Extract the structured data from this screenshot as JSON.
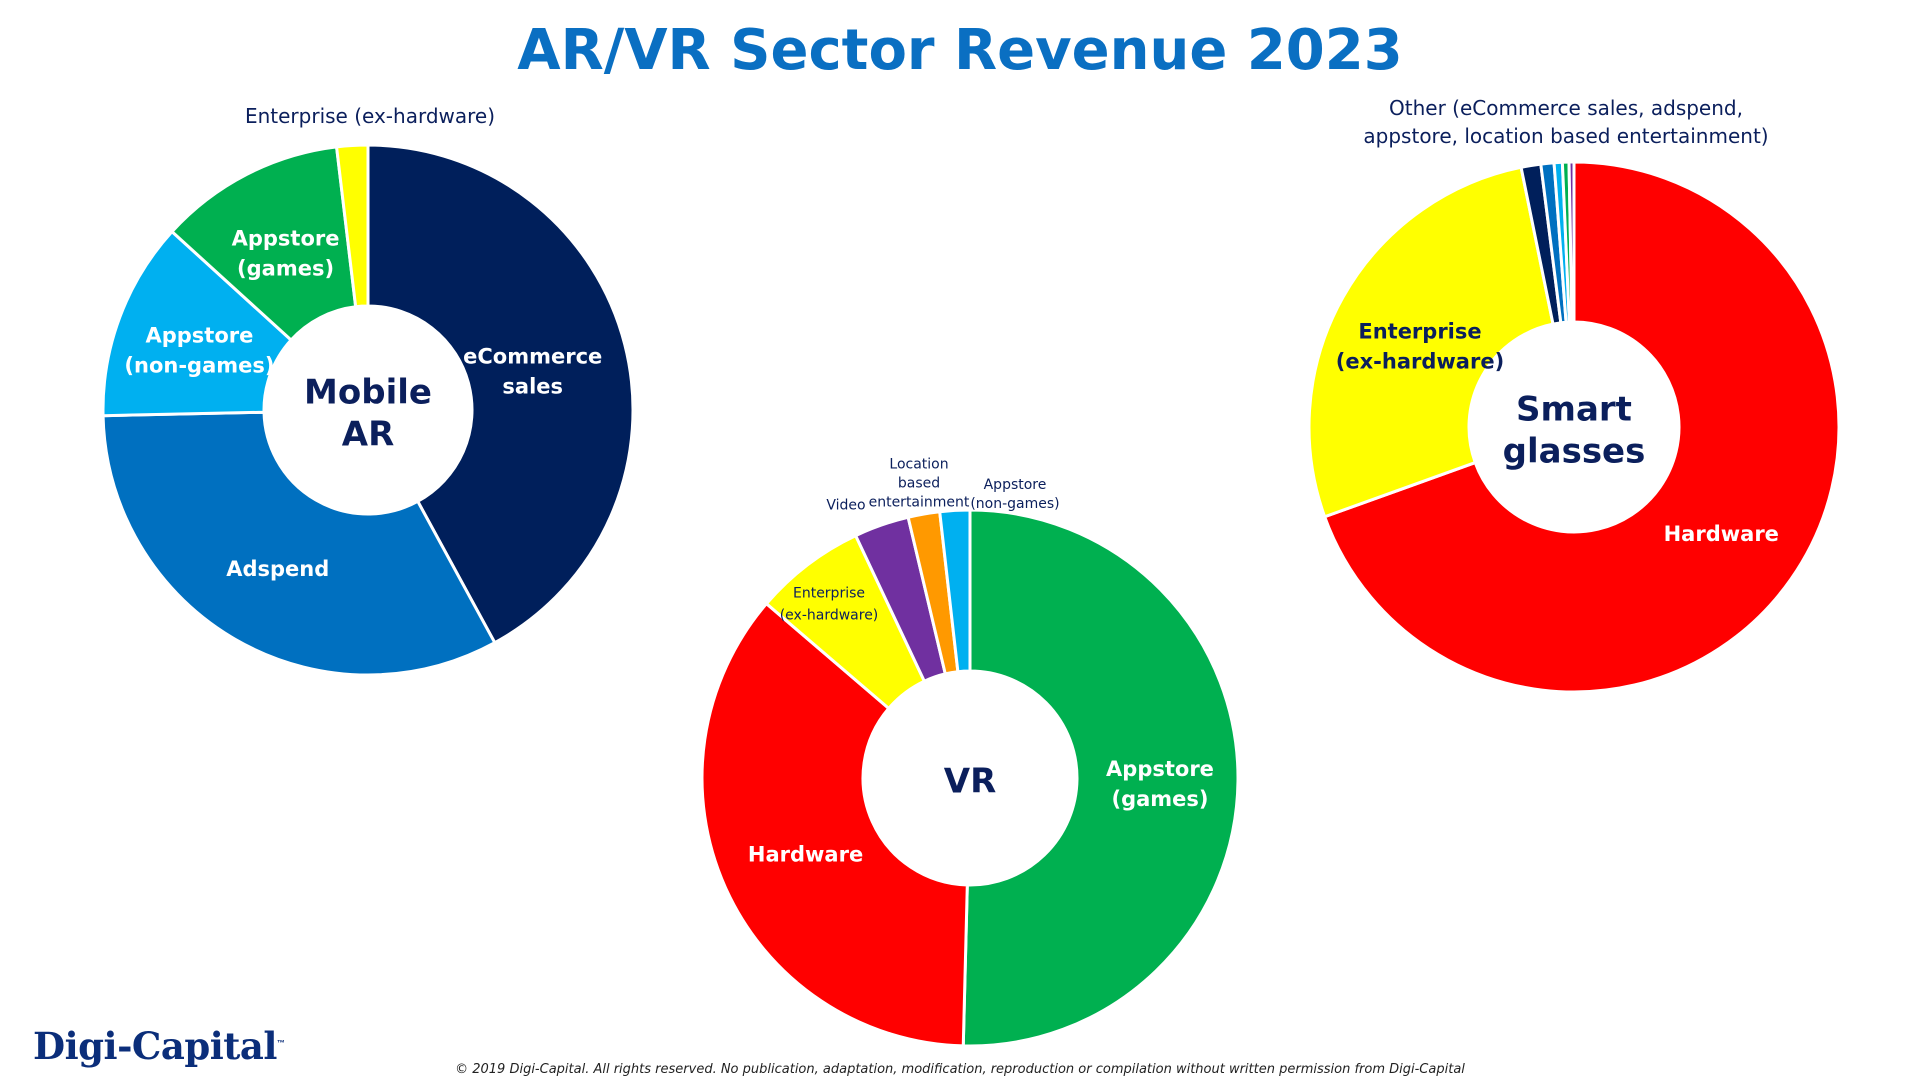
{
  "title": "AR/VR Sector Revenue 2023",
  "logo": {
    "text": "Digi-Capital",
    "tm": "™"
  },
  "copyright": "© 2019 Digi-Capital. All rights reserved. No publication, adaptation, modification, reproduction or compilation without written permission from Digi-Capital",
  "chart_data": [
    {
      "type": "pie",
      "variant": "donut",
      "title": "Mobile AR",
      "center_label": [
        "Mobile",
        "AR"
      ],
      "unit": "share of 2023 revenue (%)",
      "slices": [
        {
          "name": "eCommerce sales",
          "lines": [
            "eCommerce",
            "sales"
          ],
          "value": 40,
          "color": "#001f5b",
          "label_style": "white"
        },
        {
          "name": "Adspend",
          "lines": [
            "Adspend"
          ],
          "value": 31,
          "color": "#0070c0",
          "label_style": "white"
        },
        {
          "name": "Appstore (non-games)",
          "lines": [
            "Appstore",
            "(non-games)"
          ],
          "value": 11.5,
          "color": "#00b0f0",
          "label_style": "white"
        },
        {
          "name": "Appstore (games)",
          "lines": [
            "Appstore",
            "(games)"
          ],
          "value": 10.8,
          "color": "#00b050",
          "label_style": "white"
        },
        {
          "name": "Enterprise (ex-hardware)",
          "lines": [
            "Enterprise (ex-hardware)"
          ],
          "value": 1.8,
          "color": "#ffff00",
          "label_style": "outside"
        }
      ]
    },
    {
      "type": "pie",
      "variant": "donut",
      "title": "VR",
      "center_label": [
        "VR"
      ],
      "unit": "share of 2023 revenue (%)",
      "slices": [
        {
          "name": "Appstore (games)",
          "lines": [
            "Appstore",
            "(games)"
          ],
          "value": 50.3,
          "color": "#00b050",
          "label_style": "white"
        },
        {
          "name": "Hardware",
          "lines": [
            "Hardware"
          ],
          "value": 35.8,
          "color": "#ff0000",
          "label_style": "white"
        },
        {
          "name": "Enterprise (ex-hardware)",
          "lines": [
            "Enterprise",
            "(ex-hardware)"
          ],
          "value": 6.7,
          "color": "#ffff00",
          "label_style": "small"
        },
        {
          "name": "Video",
          "lines": [
            "Video"
          ],
          "value": 3.3,
          "color": "#7030a0",
          "label_style": "small-out"
        },
        {
          "name": "Location based entertainment",
          "lines": [
            "Location",
            "based",
            "entertainment"
          ],
          "value": 1.9,
          "color": "#ff9900",
          "label_style": "small-out"
        },
        {
          "name": "Appstore (non-games)",
          "lines": [
            "Appstore",
            "(non-games)"
          ],
          "value": 1.8,
          "color": "#00b0f0",
          "label_style": "small-out"
        }
      ]
    },
    {
      "type": "pie",
      "variant": "donut",
      "title": "Smart glasses",
      "center_label": [
        "Smart",
        "glasses"
      ],
      "unit": "share of 2023 revenue (%)",
      "slices": [
        {
          "name": "Hardware",
          "lines": [
            "Hardware"
          ],
          "value": 69.5,
          "color": "#ff0000",
          "label_style": "white"
        },
        {
          "name": "Enterprise (ex-hardware)",
          "lines": [
            "Enterprise",
            "(ex-hardware)"
          ],
          "value": 27.3,
          "color": "#ffff00",
          "label_style": "navy"
        },
        {
          "name": "eCommerce sales",
          "lines": [],
          "value": 1.2,
          "color": "#001f5b",
          "label_style": "none"
        },
        {
          "name": "Adspend",
          "lines": [],
          "value": 0.8,
          "color": "#0070c0",
          "label_style": "none"
        },
        {
          "name": "Appstore (non-games)",
          "lines": [],
          "value": 0.5,
          "color": "#00b0f0",
          "label_style": "none"
        },
        {
          "name": "Appstore (games)",
          "lines": [],
          "value": 0.4,
          "color": "#00b050",
          "label_style": "none"
        },
        {
          "name": "Location based entertainment",
          "lines": [],
          "value": 0.3,
          "color": "#7030a0",
          "label_style": "none"
        }
      ],
      "group_annotation": {
        "lines": [
          "Other (eCommerce sales, adspend,",
          "appstore, location based entertainment)"
        ]
      }
    }
  ]
}
